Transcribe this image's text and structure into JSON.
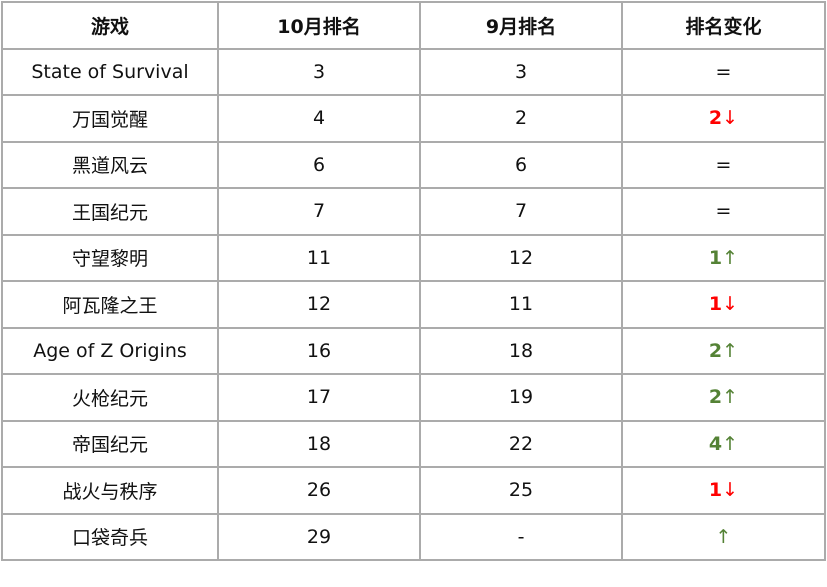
{
  "table": {
    "headers": [
      "游戏",
      "10月排名",
      "9月排名",
      "排名变化"
    ],
    "rows": [
      {
        "game": "State of Survival",
        "oct": "3",
        "sep": "3",
        "change": "",
        "arrow": "=",
        "dir": "same"
      },
      {
        "game": "万国觉醒",
        "oct": "4",
        "sep": "2",
        "change": "2",
        "arrow": "↓",
        "dir": "down"
      },
      {
        "game": "黑道风云",
        "oct": "6",
        "sep": "6",
        "change": "",
        "arrow": "=",
        "dir": "same"
      },
      {
        "game": "王国纪元",
        "oct": "7",
        "sep": "7",
        "change": "",
        "arrow": "=",
        "dir": "same"
      },
      {
        "game": "守望黎明",
        "oct": "11",
        "sep": "12",
        "change": "1",
        "arrow": "↑",
        "dir": "up"
      },
      {
        "game": "阿瓦隆之王",
        "oct": "12",
        "sep": "11",
        "change": "1",
        "arrow": "↓",
        "dir": "down"
      },
      {
        "game": "Age of Z Origins",
        "oct": "16",
        "sep": "18",
        "change": "2",
        "arrow": "↑",
        "dir": "up"
      },
      {
        "game": "火枪纪元",
        "oct": "17",
        "sep": "19",
        "change": "2",
        "arrow": "↑",
        "dir": "up"
      },
      {
        "game": "帝国纪元",
        "oct": "18",
        "sep": "22",
        "change": "4",
        "arrow": "↑",
        "dir": "up"
      },
      {
        "game": "战火与秩序",
        "oct": "26",
        "sep": "25",
        "change": "1",
        "arrow": "↓",
        "dir": "down"
      },
      {
        "game": "口袋奇兵",
        "oct": "29",
        "sep": "-",
        "change": "",
        "arrow": "↑",
        "dir": "up"
      }
    ]
  },
  "colors": {
    "up": "#548235",
    "down": "#ff0000",
    "border": "#ababab"
  }
}
